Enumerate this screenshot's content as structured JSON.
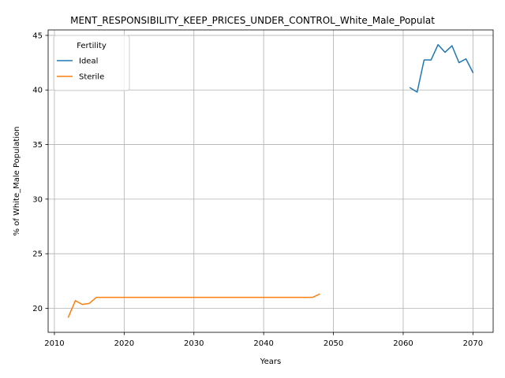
{
  "chart_data": {
    "type": "line",
    "title": "MENT_RESPONSIBILITY_KEEP_PRICES_UNDER_CONTROL_White_Male_Populat",
    "xlabel": "Years",
    "ylabel": "% of White_Male Population",
    "xlim": [
      2009.1,
      2072.9
    ],
    "ylim": [
      17.8,
      45.5
    ],
    "xticks": [
      2010,
      2020,
      2030,
      2040,
      2050,
      2060,
      2070
    ],
    "yticks": [
      20,
      25,
      30,
      35,
      40,
      45
    ],
    "grid": true,
    "legend": {
      "title": "Fertility",
      "placement": "top-left"
    },
    "series": [
      {
        "name": "Ideal",
        "color": "#1f77b4",
        "x": [
          2061,
          2062,
          2063,
          2064,
          2065,
          2066,
          2067,
          2068,
          2069,
          2070
        ],
        "y": [
          40.2,
          39.8,
          42.75,
          42.75,
          44.15,
          43.45,
          44.05,
          42.5,
          42.85,
          41.6
        ]
      },
      {
        "name": "Sterile",
        "color": "#ff7f0e",
        "x": [
          2012,
          2013,
          2014,
          2015,
          2016,
          2017,
          2018,
          2019,
          2020,
          2021,
          2022,
          2023,
          2024,
          2025,
          2026,
          2027,
          2028,
          2029,
          2030,
          2031,
          2032,
          2033,
          2034,
          2035,
          2036,
          2037,
          2038,
          2039,
          2040,
          2041,
          2042,
          2043,
          2044,
          2045,
          2046,
          2047,
          2048
        ],
        "y": [
          19.2,
          20.7,
          20.35,
          20.45,
          21.0,
          21.0,
          21.0,
          21.0,
          21.0,
          21.0,
          21.0,
          21.0,
          21.0,
          21.0,
          21.0,
          21.0,
          21.0,
          21.0,
          21.0,
          21.0,
          21.0,
          21.0,
          21.0,
          21.0,
          21.0,
          21.0,
          21.0,
          21.0,
          21.0,
          21.0,
          21.0,
          21.0,
          21.0,
          21.0,
          21.0,
          21.0,
          21.3
        ]
      }
    ]
  }
}
